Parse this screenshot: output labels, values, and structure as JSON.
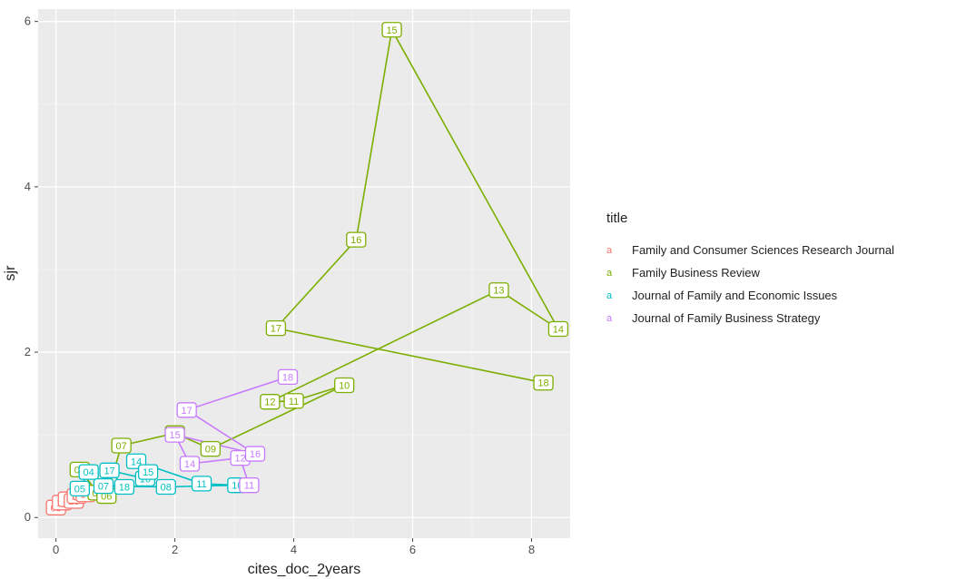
{
  "chart_data": {
    "type": "scatter",
    "title": "",
    "xlabel": "cites_doc_2years",
    "ylabel": "sjr",
    "xlim": [
      -0.3,
      8.65
    ],
    "ylim": [
      -0.25,
      6.15
    ],
    "xticks": [
      "0",
      "2",
      "4",
      "6",
      "8"
    ],
    "yticks": [
      "0",
      "2",
      "4",
      "6"
    ],
    "grid": true,
    "legend_position": "right",
    "legend_title": "title",
    "series": [
      {
        "name": "Family and Consumer Sciences Research Journal",
        "color": "#F8766D",
        "points": [
          {
            "label": "09",
            "x": 0.0,
            "y": 0.12
          },
          {
            "label": "10",
            "x": 0.1,
            "y": 0.18
          },
          {
            "label": "11",
            "x": 0.2,
            "y": 0.22
          },
          {
            "label": "18",
            "x": 0.3,
            "y": 0.2
          },
          {
            "label": "12",
            "x": 0.35,
            "y": 0.26
          },
          {
            "label": "13",
            "x": 0.45,
            "y": 0.3
          },
          {
            "label": "17",
            "x": 0.5,
            "y": 0.28
          }
        ]
      },
      {
        "name": "Family Business Review",
        "color": "#7CAE00",
        "points": [
          {
            "label": "04",
            "x": 0.4,
            "y": 0.58
          },
          {
            "label": "05",
            "x": 0.7,
            "y": 0.3
          },
          {
            "label": "06",
            "x": 0.85,
            "y": 0.26
          },
          {
            "label": "07",
            "x": 1.1,
            "y": 0.87
          },
          {
            "label": "08",
            "x": 2.0,
            "y": 1.02
          },
          {
            "label": "09",
            "x": 2.6,
            "y": 0.83
          },
          {
            "label": "10",
            "x": 4.85,
            "y": 1.6
          },
          {
            "label": "11",
            "x": 4.0,
            "y": 1.41
          },
          {
            "label": "12",
            "x": 3.6,
            "y": 1.4
          },
          {
            "label": "13",
            "x": 7.45,
            "y": 2.75
          },
          {
            "label": "14",
            "x": 8.45,
            "y": 2.28
          },
          {
            "label": "15",
            "x": 5.65,
            "y": 5.9
          },
          {
            "label": "16",
            "x": 5.05,
            "y": 3.36
          },
          {
            "label": "17",
            "x": 3.7,
            "y": 2.29
          },
          {
            "label": "18",
            "x": 8.2,
            "y": 1.63
          }
        ]
      },
      {
        "name": "Journal of Family and Economic Issues",
        "color": "#00BFC4",
        "points": [
          {
            "label": "04",
            "x": 0.55,
            "y": 0.55
          },
          {
            "label": "05",
            "x": 0.4,
            "y": 0.35
          },
          {
            "label": "07",
            "x": 0.8,
            "y": 0.38
          },
          {
            "label": "18",
            "x": 1.15,
            "y": 0.37
          },
          {
            "label": "17",
            "x": 0.9,
            "y": 0.57
          },
          {
            "label": "16",
            "x": 1.5,
            "y": 0.47
          },
          {
            "label": "14",
            "x": 1.35,
            "y": 0.68
          },
          {
            "label": "15",
            "x": 1.55,
            "y": 0.55
          },
          {
            "label": "08",
            "x": 1.85,
            "y": 0.37
          },
          {
            "label": "11",
            "x": 2.45,
            "y": 0.41
          },
          {
            "label": "10",
            "x": 3.05,
            "y": 0.39
          }
        ]
      },
      {
        "name": "Journal of Family Business Strategy",
        "color": "#C77CFF",
        "points": [
          {
            "label": "11",
            "x": 3.25,
            "y": 0.39
          },
          {
            "label": "12",
            "x": 3.1,
            "y": 0.72
          },
          {
            "label": "16",
            "x": 3.35,
            "y": 0.77
          },
          {
            "label": "14",
            "x": 2.25,
            "y": 0.65
          },
          {
            "label": "15",
            "x": 2.0,
            "y": 1.0
          },
          {
            "label": "17",
            "x": 2.2,
            "y": 1.3
          },
          {
            "label": "18",
            "x": 3.9,
            "y": 1.7
          }
        ]
      }
    ]
  }
}
